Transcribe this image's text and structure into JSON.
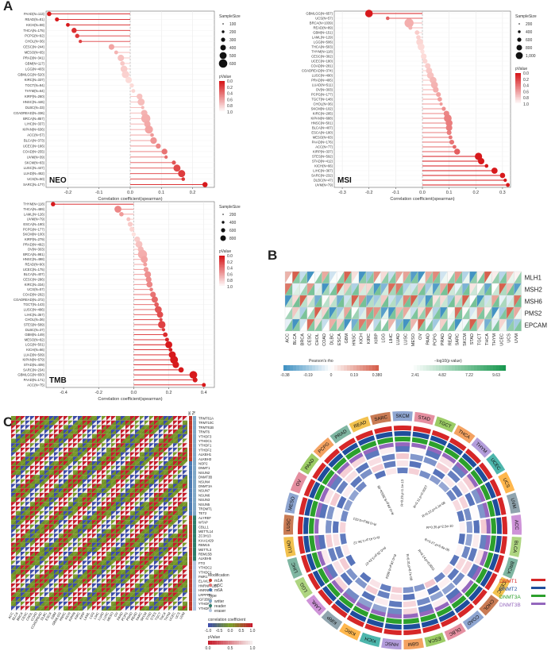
{
  "panels": {
    "a": "A",
    "b": "B",
    "c": "C"
  },
  "colors": {
    "lollipop_high": "#d7191c",
    "lollipop_low": "#fde0dd",
    "heat_pos": "#d6604d",
    "heat_neg": "#4393c3",
    "green": "#1a9850",
    "dnmt1": "#d62728",
    "dnmt2": "#1f4e9c",
    "dnmt3a": "#2ca02c",
    "dnmt3b": "#9467bd"
  },
  "chart_data": [
    {
      "type": "lollipop",
      "name": "NEO",
      "title": "NEO",
      "xlabel": "Correlation coefficient(spearman)",
      "xlim": [
        -0.27,
        0.27
      ],
      "xticks": [
        -0.2,
        -0.1,
        0,
        0.1,
        0.2
      ],
      "xtick_labels": [
        "-0.2",
        "-0.1",
        "0.0",
        "0.1",
        "0.2"
      ],
      "categories": [
        "PAAD(N=113)",
        "READ(N=81)",
        "KICH(N=59)",
        "THCA(N=175)",
        "PCPG(N=92)",
        "CHOL(N=36)",
        "CESC(N=244)",
        "MESO(N=65)",
        "PRAD(N=341)",
        "GBM(N=117)",
        "LGG(N=403)",
        "GBMLGG(N=520)",
        "KIRC(N=337)",
        "TGCT(N=94)",
        "THYM(N=64)",
        "KIRP(N=260)",
        "HNSC(N=446)",
        "DLBC(N=33)",
        "COADREAD(N=336)",
        "BRCA(N=857)",
        "LIHC(N=337)",
        "KIPAN(N=636)",
        "ACC(N=57)",
        "BLCA(N=373)",
        "UCEC(N=166)",
        "COAD(N=255)",
        "UVM(N=39)",
        "SKCM(N=83)",
        "LUSC(N=447)",
        "LUAD(N=462)",
        "UCS(N=50)",
        "SARC(N=177)"
      ],
      "values": [
        -0.26,
        -0.235,
        -0.2,
        -0.18,
        -0.17,
        -0.16,
        -0.06,
        -0.045,
        -0.03,
        -0.025,
        -0.02,
        -0.015,
        -0.005,
        0.005,
        0.01,
        0.03,
        0.035,
        0.04,
        0.045,
        0.05,
        0.055,
        0.06,
        0.07,
        0.075,
        0.09,
        0.11,
        0.115,
        0.14,
        0.15,
        0.165,
        0.17,
        0.24
      ],
      "sample_size": [
        113,
        81,
        59,
        175,
        92,
        36,
        244,
        65,
        341,
        117,
        403,
        520,
        337,
        94,
        64,
        260,
        446,
        33,
        336,
        857,
        337,
        636,
        57,
        373,
        166,
        255,
        39,
        83,
        447,
        462,
        50,
        177
      ],
      "size_legend": {
        "title": "SampleSize",
        "labels": [
          "100",
          "200",
          "300",
          "400",
          "500",
          "600"
        ]
      },
      "p_legend": {
        "title": "pValue",
        "labels": [
          "0.0",
          "0.2",
          "0.4",
          "0.6",
          "0.8",
          "1.0"
        ]
      }
    },
    {
      "type": "lollipop",
      "name": "MSI",
      "title": "MSI",
      "xlabel": "Correlation coefficient(spearman)",
      "xlim": [
        -0.33,
        0.33
      ],
      "xticks": [
        -0.3,
        -0.2,
        -0.1,
        0,
        0.1,
        0.2,
        0.3
      ],
      "xtick_labels": [
        "-0.3",
        "-0.2",
        "-0.1",
        "0.0",
        "0.1",
        "0.2",
        "0.3"
      ],
      "categories": [
        "GBMLGG(N=657)",
        "UCS(N=57)",
        "BRCA(N=1039)",
        "READ(N=89)",
        "GBM(N=151)",
        "LAML(N=129)",
        "LGG(N=506)",
        "THCA(N=503)",
        "THYM(N=118)",
        "CESC(N=302)",
        "UCEC(N=180)",
        "COAD(N=281)",
        "COADREAD(N=374)",
        "LUSC(N=490)",
        "PRAD(N=495)",
        "LUAD(N=511)",
        "OV(N=303)",
        "PCPG(N=177)",
        "TGCT(N=148)",
        "CHOL(N=36)",
        "SKCM(N=102)",
        "KIRC(N=285)",
        "KIPAN(N=688)",
        "HNSC(N=501)",
        "BLCA(N=407)",
        "ESCA(N=180)",
        "MESO(N=83)",
        "PAAD(N=176)",
        "ACC(N=77)",
        "KIRP(N=337)",
        "STES(N=592)",
        "STAD(N=412)",
        "KICH(N=66)",
        "LIHC(N=367)",
        "SARC(N=232)",
        "DLBC(N=47)",
        "UVM(N=79)"
      ],
      "values": [
        -0.2,
        -0.13,
        -0.05,
        -0.045,
        -0.02,
        -0.015,
        -0.01,
        -0.005,
        0.0,
        0.005,
        0.01,
        0.02,
        0.025,
        0.03,
        0.04,
        0.045,
        0.05,
        0.06,
        0.065,
        0.07,
        0.08,
        0.09,
        0.095,
        0.1,
        0.1,
        0.1,
        0.105,
        0.11,
        0.12,
        0.13,
        0.21,
        0.22,
        0.24,
        0.27,
        0.3,
        0.31,
        0.32
      ],
      "sample_size": [
        657,
        57,
        1039,
        89,
        151,
        129,
        506,
        503,
        118,
        302,
        180,
        281,
        374,
        490,
        495,
        511,
        303,
        177,
        148,
        36,
        102,
        285,
        688,
        501,
        407,
        180,
        83,
        176,
        77,
        337,
        592,
        412,
        66,
        367,
        232,
        47,
        79
      ],
      "size_legend": {
        "title": "SampleSize",
        "labels": [
          "200",
          "400",
          "600",
          "800",
          "1,000"
        ]
      },
      "p_legend": {
        "title": "pValue",
        "labels": [
          "0.0",
          "0.2",
          "0.4",
          "0.6",
          "0.8",
          "1.0"
        ]
      }
    },
    {
      "type": "lollipop",
      "name": "TMB",
      "title": "TMB",
      "xlabel": "Correlation coefficient(spearman)",
      "xlim": [
        -0.5,
        0.46
      ],
      "xticks": [
        -0.4,
        -0.2,
        0,
        0.2,
        0.4
      ],
      "xtick_labels": [
        "-0.4",
        "-0.2",
        "0.0",
        "0.2",
        "0.4"
      ],
      "categories": [
        "THYM(N=118)",
        "THCA(N=489)",
        "LAML(N=126)",
        "UVM(N=79)",
        "ESCA(N=180)",
        "PCPG(N=177)",
        "SKCM(N=100)",
        "KIRP(N=279)",
        "PRAD(N=492)",
        "OV(N=303)",
        "BRCA(N=981)",
        "HNSC(N=498)",
        "READ(N=90)",
        "UCEC(N=175)",
        "BLCA(N=407)",
        "CESC(N=286)",
        "KIRC(N=334)",
        "UCS(N=57)",
        "COAD(N=282)",
        "COADREAD(N=372)",
        "TGCT(N=143)",
        "LUSC(N=486)",
        "LIHC(N=357)",
        "CHOL(N=36)",
        "STES(N=589)",
        "DLBC(N=37)",
        "GBM(N=149)",
        "MESO(N=82)",
        "LGG(N=501)",
        "KICH(N=66)",
        "LUAD(N=509)",
        "KIPAN(N=679)",
        "STAD(N=409)",
        "SARC(N=234)",
        "GBMLGG(N=650)",
        "PAAD(N=171)",
        "ACC(N=75)"
      ],
      "values": [
        -0.46,
        -0.09,
        -0.07,
        -0.03,
        -0.02,
        -0.01,
        0.0,
        0.02,
        0.03,
        0.04,
        0.05,
        0.06,
        0.065,
        0.07,
        0.08,
        0.085,
        0.09,
        0.1,
        0.11,
        0.12,
        0.13,
        0.14,
        0.15,
        0.155,
        0.16,
        0.17,
        0.18,
        0.19,
        0.2,
        0.21,
        0.22,
        0.23,
        0.24,
        0.27,
        0.34,
        0.35,
        0.4
      ],
      "sample_size": [
        118,
        489,
        126,
        79,
        180,
        177,
        100,
        279,
        492,
        303,
        981,
        498,
        90,
        175,
        407,
        286,
        334,
        57,
        282,
        372,
        143,
        486,
        357,
        36,
        589,
        37,
        149,
        82,
        501,
        66,
        509,
        679,
        409,
        234,
        650,
        171,
        75
      ],
      "size_legend": {
        "title": "SampleSize",
        "labels": [
          "200",
          "400",
          "600",
          "800"
        ]
      },
      "p_legend": {
        "title": "pValue",
        "labels": [
          "0.0",
          "0.2",
          "0.4",
          "0.6",
          "0.8",
          "1.0"
        ]
      }
    },
    {
      "type": "heatmap",
      "name": "MMR",
      "columns": [
        "ACC",
        "BLCA",
        "BRCA",
        "CESC",
        "CHOL",
        "COAD",
        "DLBC",
        "ESCA",
        "GBM",
        "HNSC",
        "KICH",
        "KIRC",
        "KIRP",
        "LGG",
        "LIHC",
        "LUAD",
        "LUSC",
        "MESO",
        "OV",
        "PAAD",
        "PCPG",
        "PRAD",
        "READ",
        "SARC",
        "SKCM",
        "STAD",
        "TGCT",
        "THCA",
        "THYM",
        "UCEC",
        "UCS",
        "UVM"
      ],
      "rows": [
        "MLH1",
        "MSH2",
        "MSH6",
        "PMS2",
        "EPCAM"
      ],
      "rho_legend": {
        "title": "Pearson's rho",
        "labels": [
          "-0.38",
          "-0.19",
          "0",
          "0.19",
          "0.380"
        ]
      },
      "p_legend": {
        "title": "−log10(p value)",
        "labels": [
          "2.41",
          "4.82",
          "7.22",
          "9.63"
        ]
      }
    },
    {
      "type": "heatmap",
      "name": "RNA modification",
      "column_header": [
        "Modification",
        "Type"
      ],
      "rows": [
        "TRMT61A",
        "TRMT10C",
        "TRMT61B",
        "TRMT6",
        "YTHDF3",
        "YTHDC1",
        "YTHDF1",
        "YTHDF2",
        "ALKBH1",
        "ALKBH3",
        "NOP2",
        "DNMT1",
        "NSUN2",
        "DNMT3B",
        "NSUN4",
        "DNMT3A",
        "NSUN7",
        "NSUN6",
        "NSUN3",
        "NSUN5",
        "TRDMT1",
        "TET2",
        "ALYREF",
        "WTAP",
        "CBLL1",
        "METTL14",
        "ZC3H13",
        "KIAA1429",
        "RBM15",
        "METTL3",
        "RBM15B",
        "ALKBH5",
        "FTO",
        "YTHDC2",
        "YTHDC1",
        "FMR1",
        "ELAVL1",
        "HNRNPA2B1",
        "HNRNPC",
        "LRPPRC",
        "IGF2BP1",
        "YTHDF1",
        "YTHDF2"
      ],
      "columns": [
        "ACC",
        "BLCA",
        "BRCA",
        "CESC",
        "CHOL",
        "COAD",
        "COADREAD",
        "DLBC",
        "ESCA",
        "GBM",
        "GBMLGG",
        "HNSC",
        "KICH",
        "KIPAN",
        "KIRC",
        "KIRP",
        "LAML",
        "LGG",
        "LIHC",
        "LUAD",
        "LUSC",
        "MESO",
        "OV",
        "PAAD",
        "PCPG",
        "PRAD",
        "READ",
        "SARC",
        "SKCM",
        "STAD",
        "STES",
        "TGCT",
        "THCA",
        "THYM",
        "UCEC",
        "UCS",
        "UVM"
      ],
      "legend": {
        "modification_title": "Modification",
        "modification": [
          "m1A",
          "m5C",
          "m6A"
        ],
        "type_title": "Type",
        "type": [
          "writer",
          "reader",
          "eraser"
        ],
        "corr_title": "correlation coefficient",
        "corr_labels": [
          "-1.0",
          "-0.5",
          "0.0",
          "0.5",
          "1.0"
        ],
        "p_title": "pValue",
        "p_labels": [
          "0.0",
          "0.5",
          "1.0"
        ]
      }
    },
    {
      "type": "circos",
      "name": "DNMT",
      "segments": [
        "PRAD",
        "READ",
        "SARC",
        "SKCM",
        "STAD",
        "TGCT",
        "THCA",
        "THYM",
        "UCEC",
        "UCS",
        "UVM",
        "ACC",
        "BLCA",
        "BRCA",
        "CESC",
        "CHOL",
        "COAD",
        "DLBC",
        "ESCA",
        "GBM",
        "HNSC",
        "KICH",
        "KIRC",
        "KIRP",
        "LAML",
        "LGG",
        "LIHC",
        "LUAD",
        "LUSC",
        "MESO",
        "OV",
        "PAAD",
        "PCPG"
      ],
      "series": [
        "DNMT1",
        "DNMT2",
        "DNMT3A",
        "DNMT3B"
      ],
      "annotations": [
        "R=0.49,p=9.3652e-06",
        "R=0.29,p=1.1e-13",
        "R=0.11,p=0.0027",
        "R=0.22,p=4.1e-08",
        "R=0.35,p=2.5e-10",
        "R=0.27,p=5.6e-06",
        "R=0.14,p=0.0011",
        "R=0.31,p=8.7e-09",
        "R=0.18,p=0.0004",
        "R=0.25,p=3.2e-07",
        "R=0.41,p=1.9e-12",
        "R=0.09,p=0.021"
      ]
    }
  ]
}
